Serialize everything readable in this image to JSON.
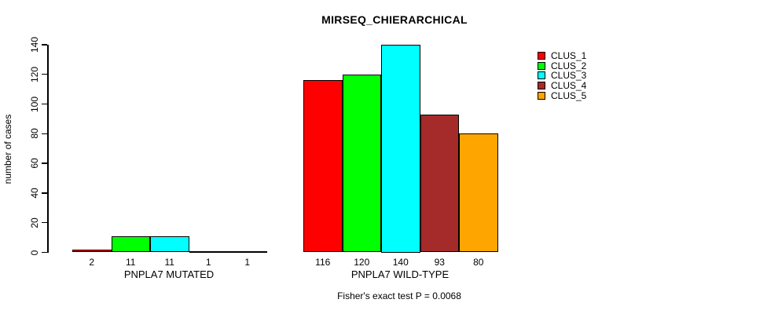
{
  "chart_data": {
    "type": "bar",
    "title": "MIRSEQ_CHIERARCHICAL",
    "ylabel": "number of cases",
    "xlabel": "",
    "ylim": [
      0,
      140
    ],
    "yticks": [
      0,
      20,
      40,
      60,
      80,
      100,
      120,
      140
    ],
    "grid": false,
    "legend_position": "top-right",
    "categories": [
      "PNPLA7 MUTATED",
      "PNPLA7 WILD-TYPE"
    ],
    "series": [
      {
        "name": "CLUS_1",
        "color": "#FF0000",
        "values": [
          2,
          116
        ]
      },
      {
        "name": "CLUS_2",
        "color": "#00FF00",
        "values": [
          11,
          120
        ]
      },
      {
        "name": "CLUS_3",
        "color": "#00FFFF",
        "values": [
          11,
          140
        ]
      },
      {
        "name": "CLUS_4",
        "color": "#A52A2A",
        "values": [
          1,
          93
        ]
      },
      {
        "name": "CLUS_5",
        "color": "#FFA500",
        "values": [
          1,
          80
        ]
      }
    ],
    "bar_value_labels": [
      [
        "2",
        "11",
        "11",
        "1",
        "1"
      ],
      [
        "116",
        "120",
        "140",
        "93",
        "80"
      ]
    ],
    "footer": "Fisher's exact test P = 0.0068"
  },
  "colors": {
    "axis": "#000000",
    "background": "#ffffff",
    "text": "#000000"
  }
}
